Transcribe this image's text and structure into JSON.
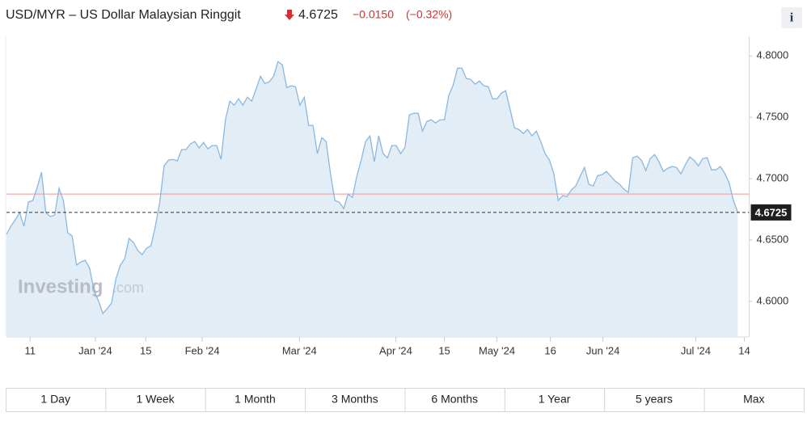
{
  "header": {
    "title": "USD/MYR – US Dollar Malaysian Ringgit",
    "price": "4.6725",
    "change": "−0.0150",
    "change_pct": "(−0.32%)",
    "info": "i"
  },
  "chart_data": {
    "type": "area",
    "color": "#8ab8de",
    "fill": "#e3edf6",
    "watermark": [
      "Investing",
      ".com"
    ],
    "values": [
      4.6546,
      4.6612,
      4.6664,
      4.6723,
      4.6612,
      4.6809,
      4.6822,
      4.6927,
      4.7052,
      4.6723,
      4.6691,
      4.6704,
      4.6921,
      4.6822,
      4.6559,
      4.6533,
      4.6296,
      4.6322,
      4.6335,
      4.6269,
      4.6085,
      4.6006,
      4.5901,
      4.594,
      4.5987,
      4.6184,
      4.6296,
      4.6348,
      4.6513,
      4.648,
      4.6414,
      4.6381,
      4.6434,
      4.6454,
      4.6612,
      4.6809,
      4.7105,
      4.7151,
      4.7158,
      4.7145,
      4.7237,
      4.7237,
      4.7283,
      4.7303,
      4.725,
      4.7296,
      4.7243,
      4.727,
      4.727,
      4.7158,
      4.748,
      4.7632,
      4.7599,
      4.7651,
      4.7599,
      4.7664,
      4.7632,
      4.773,
      4.7835,
      4.7776,
      4.7789,
      4.7835,
      4.7954,
      4.7928,
      4.7743,
      4.7757,
      4.775,
      4.7599,
      4.7664,
      4.7434,
      4.7434,
      4.7204,
      4.7335,
      4.7303,
      4.7039,
      4.6822,
      4.6809,
      4.6756,
      4.6875,
      4.6848,
      4.702,
      4.7151,
      4.7303,
      4.7349,
      4.7138,
      4.7349,
      4.7204,
      4.7171,
      4.727,
      4.727,
      4.7204,
      4.7256,
      4.752,
      4.7533,
      4.7533,
      4.7388,
      4.7467,
      4.748,
      4.7454,
      4.748,
      4.748,
      4.7678,
      4.7763,
      4.7901,
      4.7901,
      4.7816,
      4.7809,
      4.777,
      4.7796,
      4.7757,
      4.775,
      4.7651,
      4.7651,
      4.7697,
      4.7717,
      4.7566,
      4.7414,
      4.7401,
      4.7368,
      4.7401,
      4.7349,
      4.7388,
      4.7303,
      4.7204,
      4.7151,
      4.7039,
      4.6822,
      4.6862,
      4.6855,
      4.6908,
      4.6941,
      4.702,
      4.7092,
      4.6954,
      4.6941,
      4.7026,
      4.7033,
      4.7059,
      4.702,
      4.698,
      4.6954,
      4.6914,
      4.6888,
      4.7171,
      4.7184,
      4.7151,
      4.7066,
      4.7164,
      4.7197,
      4.7138,
      4.7059,
      4.7085,
      4.7099,
      4.7092,
      4.7039,
      4.7112,
      4.7177,
      4.7151,
      4.7105,
      4.7164,
      4.7171,
      4.7072,
      4.7072,
      4.7099,
      4.7046,
      4.6967,
      4.6822,
      4.6725
    ],
    "reference_line": 4.6875,
    "reference_color": "#f0a8a8",
    "ylim": [
      4.571,
      4.816
    ],
    "yticks": [
      {
        "value": 4.6,
        "label": "4.6000"
      },
      {
        "value": 4.65,
        "label": "4.6500"
      },
      {
        "value": 4.7,
        "label": "4.7000"
      },
      {
        "value": 4.75,
        "label": "4.7500"
      },
      {
        "value": 4.8,
        "label": "4.8000"
      }
    ],
    "xlim": [
      0,
      169.6
    ],
    "xticks": [
      {
        "value": 5.4,
        "label": "11"
      },
      {
        "value": 20.3,
        "label": "Jan '24"
      },
      {
        "value": 31.8,
        "label": "15"
      },
      {
        "value": 44.7,
        "label": "Feb '24"
      },
      {
        "value": 66.9,
        "label": "Mar '24"
      },
      {
        "value": 88.9,
        "label": "Apr '24"
      },
      {
        "value": 100,
        "label": "15"
      },
      {
        "value": 112,
        "label": "May '24"
      },
      {
        "value": 124.2,
        "label": "16"
      },
      {
        "value": 136.2,
        "label": "Jun '24"
      },
      {
        "value": 157.4,
        "label": "Jul '24"
      },
      {
        "value": 168.5,
        "label": "14"
      }
    ],
    "grid": false
  },
  "ranges": [
    "1 Day",
    "1 Week",
    "1 Month",
    "3 Months",
    "6 Months",
    "1 Year",
    "5 years",
    "Max"
  ]
}
